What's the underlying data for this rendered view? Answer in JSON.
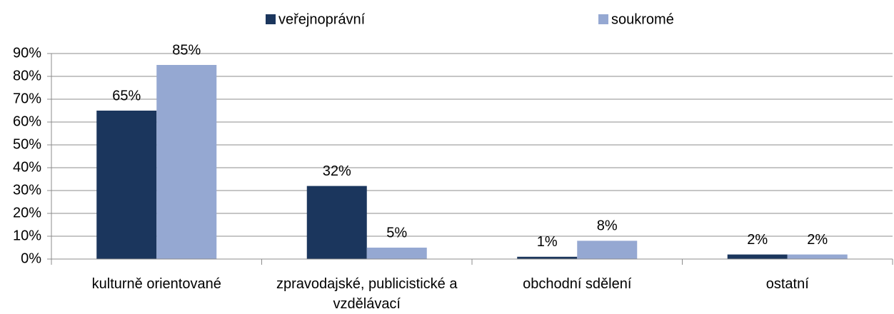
{
  "chart_data": {
    "type": "bar",
    "categories": [
      "kulturně orientované",
      "zpravodajské, publicistické a vzdělávací",
      "obchodní sdělení",
      "ostatní"
    ],
    "series": [
      {
        "name": "veřejnoprávní",
        "color": "#1b365d",
        "values": [
          65,
          32,
          1,
          2
        ],
        "value_labels": [
          "65%",
          "32%",
          "1%",
          "2%"
        ]
      },
      {
        "name": "soukromé",
        "color": "#95a8d2",
        "values": [
          85,
          5,
          8,
          2
        ],
        "value_labels": [
          "85%",
          "5%",
          "8%",
          "2%"
        ]
      }
    ],
    "ylim": [
      0,
      90
    ],
    "yticks": [
      {
        "value": 0,
        "label": "0%"
      },
      {
        "value": 10,
        "label": "10%"
      },
      {
        "value": 20,
        "label": "20%"
      },
      {
        "value": 30,
        "label": "30%"
      },
      {
        "value": 40,
        "label": "40%"
      },
      {
        "value": 50,
        "label": "50%"
      },
      {
        "value": 60,
        "label": "60%"
      },
      {
        "value": 70,
        "label": "70%"
      },
      {
        "value": 80,
        "label": "80%"
      },
      {
        "value": 90,
        "label": "90%"
      }
    ],
    "grid": true,
    "legend": "top"
  }
}
